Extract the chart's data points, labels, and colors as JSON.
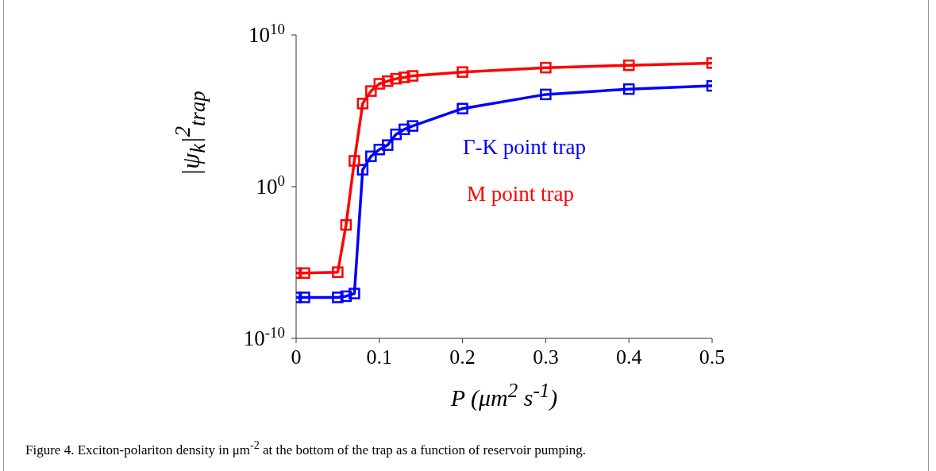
{
  "chart_data": {
    "type": "line",
    "xlabel": "P (μm$^{2}$ s$^{-1}$)",
    "ylabel": "|ψ$_{k}$|$^{2}$$_{trap}$",
    "annotations": [
      "Figure 4. Exciton-polariton density in μm$^{-2}$ at the bottom of the trap as a function of reservoir pumping."
    ],
    "x": [
      0,
      0.01,
      0.05,
      0.06,
      0.07,
      0.08,
      0.09,
      0.1,
      0.11,
      0.12,
      0.13,
      0.14,
      0.2,
      0.3,
      0.4,
      0.5
    ],
    "series": [
      {
        "name": "Γ-K point trap",
        "color": "#0000ff",
        "values": [
          5e-08,
          5e-08,
          5e-08,
          6e-08,
          9e-08,
          13,
          100,
          280,
          550,
          2800,
          6000,
          10000,
          140000,
          1200000,
          2700000,
          4400000
        ]
      },
      {
        "name": "M point trap",
        "color": "#ff0000",
        "values": [
          2e-06,
          2e-06,
          2.3e-06,
          0.003,
          50,
          300000,
          2000000,
          6000000,
          9000000,
          13000000,
          16000000,
          20000000,
          36000000,
          70000000,
          100000000,
          140000000
        ]
      }
    ],
    "log": "y",
    "xlim": [
      0,
      0.5
    ],
    "xticks": [
      0,
      0.1,
      0.2,
      0.3,
      0.4,
      0.5
    ],
    "ylim": [
      1e-10,
      10000000000.0
    ],
    "yticks": [
      {
        "value": 1e-10,
        "label": "10$^{-10}$"
      },
      {
        "value": 1,
        "label": "10$^{0}$"
      },
      {
        "value": 10000000000.0,
        "label": "10$^{10}$"
      }
    ],
    "grid": false,
    "legend": false,
    "marker": "square",
    "line_style": "solid"
  }
}
